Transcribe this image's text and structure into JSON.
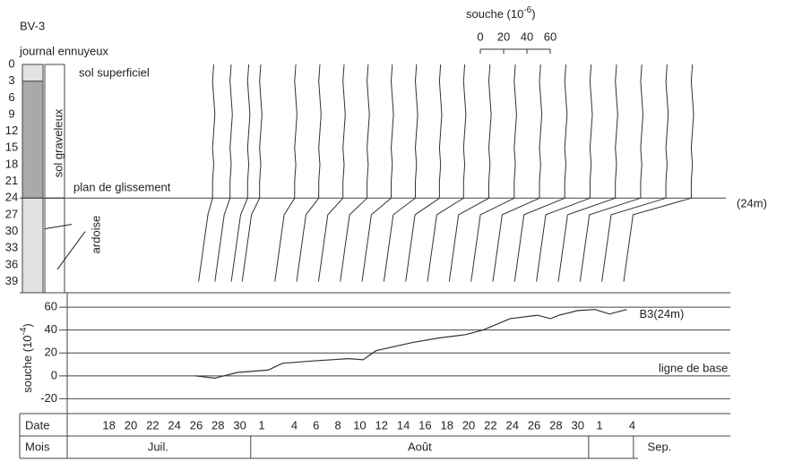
{
  "chart_data": [
    {
      "type": "profile",
      "title": "BV-3",
      "column_title": "journal ennuyeux",
      "column_labels": [
        "sol graveleux",
        "ardoise"
      ],
      "annotations": [
        "sol superficiel",
        "plan de glissement",
        "(24m)"
      ],
      "strain_title": "souche (10",
      "strain_exp": "-6",
      "strain_close": ")",
      "strain_ticks": [
        0,
        20,
        40,
        60
      ],
      "ylim": [
        0,
        41
      ],
      "yticks": [
        0,
        3,
        6,
        9,
        12,
        15,
        18,
        21,
        24,
        27,
        30,
        33,
        36,
        39
      ],
      "color": "#333333",
      "profiles": [
        {
          "date": 8,
          "values": [
            15,
            14,
            15,
            16,
            15,
            14,
            15,
            14,
            14,
            10,
            8,
            6,
            4,
            2
          ]
        },
        {
          "date": 9.5,
          "values": [
            16,
            15,
            16,
            17,
            16,
            15,
            16,
            15,
            15,
            10,
            8,
            6,
            4,
            2
          ]
        },
        {
          "date": 11,
          "values": [
            17,
            16,
            17,
            18,
            17,
            16,
            17,
            16,
            16,
            10,
            8,
            6,
            4,
            2
          ]
        },
        {
          "date": 12,
          "values": [
            18,
            17,
            18,
            19,
            18,
            17,
            18,
            17,
            17,
            10,
            8,
            6,
            4,
            2
          ]
        },
        {
          "date": 15,
          "values": [
            20,
            19,
            20,
            21,
            20,
            19,
            20,
            19,
            19,
            10,
            8,
            6,
            4,
            2
          ]
        },
        {
          "date": 17,
          "values": [
            22,
            21,
            22,
            23,
            22,
            21,
            22,
            21,
            21,
            10,
            8,
            6,
            4,
            2
          ]
        },
        {
          "date": 19,
          "values": [
            24,
            23,
            24,
            25,
            24,
            23,
            24,
            23,
            23,
            10,
            8,
            6,
            4,
            2
          ]
        },
        {
          "date": 21,
          "values": [
            26,
            25,
            26,
            27,
            26,
            25,
            26,
            25,
            25,
            10,
            8,
            6,
            4,
            2
          ]
        },
        {
          "date": 23,
          "values": [
            28,
            27,
            28,
            29,
            28,
            27,
            28,
            27,
            27,
            10,
            8,
            6,
            4,
            2
          ]
        },
        {
          "date": 25,
          "values": [
            30,
            29,
            30,
            31,
            30,
            29,
            30,
            29,
            29,
            10,
            8,
            6,
            4,
            2
          ]
        },
        {
          "date": 27,
          "values": [
            32,
            31,
            32,
            33,
            32,
            31,
            32,
            31,
            31,
            10,
            8,
            6,
            4,
            2
          ]
        },
        {
          "date": 29,
          "values": [
            34,
            33,
            34,
            35,
            34,
            33,
            34,
            33,
            33,
            10,
            8,
            6,
            4,
            2
          ]
        },
        {
          "date": 31,
          "values": [
            37,
            36,
            37,
            38,
            37,
            36,
            37,
            36,
            36,
            10,
            8,
            6,
            4,
            2
          ]
        },
        {
          "date": 33,
          "values": [
            40,
            39,
            40,
            41,
            40,
            39,
            40,
            39,
            39,
            10,
            8,
            6,
            4,
            2
          ]
        },
        {
          "date": 35,
          "values": [
            43,
            42,
            43,
            44,
            43,
            42,
            43,
            42,
            42,
            10,
            8,
            6,
            4,
            2
          ]
        },
        {
          "date": 37,
          "values": [
            46,
            45,
            46,
            47,
            46,
            45,
            46,
            45,
            45,
            10,
            8,
            6,
            4,
            2
          ]
        },
        {
          "date": 39,
          "values": [
            49,
            48,
            49,
            50,
            49,
            48,
            49,
            48,
            48,
            10,
            8,
            6,
            4,
            2
          ]
        },
        {
          "date": 41,
          "values": [
            52,
            51,
            52,
            53,
            52,
            51,
            52,
            51,
            51,
            10,
            8,
            6,
            4,
            2
          ]
        },
        {
          "date": 43,
          "values": [
            55,
            54,
            55,
            56,
            55,
            54,
            55,
            54,
            54,
            10,
            8,
            6,
            4,
            2
          ]
        },
        {
          "date": 45,
          "values": [
            58,
            57,
            58,
            59,
            58,
            57,
            58,
            57,
            57,
            10,
            8,
            6,
            4,
            2
          ]
        },
        {
          "date": 47,
          "values": [
            61,
            60,
            61,
            62,
            61,
            60,
            61,
            60,
            60,
            10,
            8,
            6,
            4,
            2
          ]
        }
      ]
    },
    {
      "type": "line",
      "ylabel": "souche (10",
      "ylabel_exp": "-4",
      "ylabel_close": ")",
      "ylim": [
        -33,
        64
      ],
      "yticks": [
        -20,
        0,
        20,
        40,
        60
      ],
      "xlim": [
        -4,
        57
      ],
      "xticks": [
        {
          "value": 0,
          "label": "18"
        },
        {
          "value": 2,
          "label": "20"
        },
        {
          "value": 4,
          "label": "22"
        },
        {
          "value": 6,
          "label": "24"
        },
        {
          "value": 8,
          "label": "26"
        },
        {
          "value": 10,
          "label": "28"
        },
        {
          "value": 12,
          "label": "30"
        },
        {
          "value": 14,
          "label": "1"
        },
        {
          "value": 17,
          "label": "4"
        },
        {
          "value": 19,
          "label": "6"
        },
        {
          "value": 21,
          "label": "8"
        },
        {
          "value": 23,
          "label": "10"
        },
        {
          "value": 25,
          "label": "12"
        },
        {
          "value": 27,
          "label": "14"
        },
        {
          "value": 29,
          "label": "16"
        },
        {
          "value": 31,
          "label": "18"
        },
        {
          "value": 33,
          "label": "20"
        },
        {
          "value": 35,
          "label": "22"
        },
        {
          "value": 37,
          "label": "24"
        },
        {
          "value": 39,
          "label": "26"
        },
        {
          "value": 41,
          "label": "28"
        },
        {
          "value": 43,
          "label": "30"
        },
        {
          "value": 45,
          "label": "1"
        },
        {
          "value": 48,
          "label": "4"
        }
      ],
      "row_labels": [
        "Date",
        "Mois"
      ],
      "months": [
        "Juil.",
        "Août",
        "Sep."
      ],
      "annotations": [
        "ligne de base"
      ],
      "series": [
        {
          "name": "B3(24m)",
          "color": "#333333",
          "x": [
            7.9,
            9.7,
            11.8,
            14.6,
            15.9,
            18.7,
            22,
            23.3,
            24.5,
            27.8,
            30.2,
            32.7,
            34.3,
            36.8,
            39.3,
            40.5,
            41.3,
            43,
            44.6,
            45.9,
            47.5
          ],
          "values": [
            0,
            -2,
            3,
            5,
            11,
            13,
            15,
            14,
            22,
            29,
            33,
            36,
            40,
            50,
            53,
            50,
            53,
            57,
            58,
            54,
            58
          ]
        }
      ]
    }
  ]
}
